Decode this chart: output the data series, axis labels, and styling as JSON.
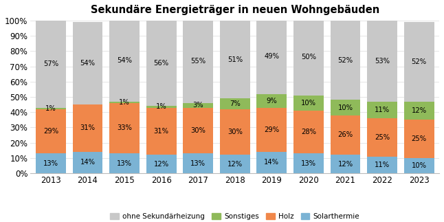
{
  "title": "Sekundäre Energieträger in neuen Wohngebäuden",
  "years": [
    2013,
    2014,
    2015,
    2016,
    2017,
    2018,
    2019,
    2020,
    2021,
    2022,
    2023
  ],
  "series": {
    "ohne Sekundärheizung": [
      57,
      54,
      54,
      56,
      55,
      51,
      49,
      50,
      52,
      53,
      52
    ],
    "Sonstiges": [
      1,
      0,
      1,
      1,
      3,
      7,
      9,
      10,
      10,
      11,
      12
    ],
    "Holz": [
      29,
      31,
      33,
      31,
      30,
      30,
      29,
      28,
      26,
      25,
      25
    ],
    "Solarthermie": [
      13,
      14,
      13,
      12,
      13,
      12,
      14,
      13,
      12,
      11,
      10
    ]
  },
  "colors": {
    "ohne Sekundärheizung": "#c8c8c8",
    "Sonstiges": "#8fba5a",
    "Holz": "#f0874a",
    "Solarthermie": "#7bb3d4"
  },
  "legend_order": [
    "ohne Sekundärheizung",
    "Sonstiges",
    "Holz",
    "Solarthermie"
  ],
  "stack_order": [
    "Solarthermie",
    "Holz",
    "Sonstiges",
    "ohne Sekundärheizung"
  ],
  "ylim": [
    0,
    100
  ],
  "yticks": [
    0,
    10,
    20,
    30,
    40,
    50,
    60,
    70,
    80,
    90,
    100
  ],
  "ytick_labels": [
    "0%",
    "10%",
    "20%",
    "30%",
    "40%",
    "50%",
    "60%",
    "70%",
    "80%",
    "90%",
    "100%"
  ],
  "bar_width": 0.82,
  "label_fontsize": 7.2,
  "title_fontsize": 10.5,
  "tick_fontsize": 8.5,
  "legend_fontsize": 7.5,
  "background_color": "#ffffff"
}
